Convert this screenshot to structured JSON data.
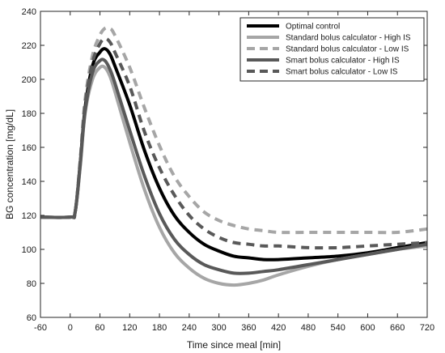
{
  "chart_data": {
    "type": "line",
    "title": "",
    "xlabel": "Time since meal [min]",
    "ylabel": "BG concentration [mg/dL]",
    "xlim": [
      -60,
      720
    ],
    "ylim": [
      60,
      240
    ],
    "xticks": [
      -60,
      0,
      60,
      120,
      180,
      240,
      300,
      360,
      420,
      480,
      540,
      600,
      660,
      720
    ],
    "yticks": [
      60,
      80,
      100,
      120,
      140,
      160,
      180,
      200,
      220,
      240
    ],
    "grid": false,
    "legend_position": "top-right",
    "series": [
      {
        "name": "Optimal control",
        "color": "#000000",
        "style": "solid",
        "x": [
          -60,
          0,
          10,
          20,
          30,
          45,
          60,
          70,
          80,
          90,
          120,
          150,
          180,
          210,
          240,
          270,
          300,
          330,
          360,
          390,
          420,
          480,
          540,
          600,
          660,
          720
        ],
        "y": [
          119,
          119,
          122,
          150,
          183,
          208,
          216,
          218,
          215,
          208,
          185,
          158,
          136,
          120,
          110,
          103,
          99,
          96,
          95,
          94,
          94,
          95,
          96,
          98,
          101,
          104
        ]
      },
      {
        "name": "Standard bolus calculator - High IS",
        "color": "#a6a6a6",
        "style": "solid",
        "x": [
          -60,
          0,
          10,
          20,
          30,
          45,
          60,
          70,
          80,
          90,
          120,
          150,
          180,
          210,
          240,
          270,
          300,
          330,
          360,
          390,
          420,
          480,
          540,
          600,
          660,
          720
        ],
        "y": [
          119,
          119,
          122,
          148,
          180,
          200,
          207,
          207,
          202,
          193,
          163,
          135,
          113,
          98,
          89,
          83,
          80,
          79,
          80,
          82,
          85,
          90,
          94,
          97,
          100,
          102
        ]
      },
      {
        "name": "Standard bolus calculator - Low IS",
        "color": "#a6a6a6",
        "style": "dashed",
        "x": [
          -60,
          0,
          10,
          20,
          30,
          45,
          60,
          70,
          80,
          90,
          120,
          150,
          180,
          210,
          240,
          270,
          300,
          330,
          360,
          390,
          420,
          480,
          540,
          600,
          660,
          720
        ],
        "y": [
          119,
          119,
          122,
          152,
          188,
          214,
          226,
          230,
          230,
          226,
          207,
          183,
          161,
          143,
          131,
          122,
          117,
          114,
          112,
          111,
          110,
          110,
          110,
          110,
          110,
          112
        ]
      },
      {
        "name": "Smart bolus calculator - High IS",
        "color": "#595959",
        "style": "solid",
        "x": [
          -60,
          0,
          10,
          20,
          30,
          45,
          60,
          70,
          80,
          90,
          120,
          150,
          180,
          210,
          240,
          270,
          300,
          330,
          360,
          390,
          420,
          480,
          540,
          600,
          660,
          720
        ],
        "y": [
          119,
          119,
          122,
          149,
          181,
          204,
          211,
          211,
          206,
          198,
          170,
          143,
          121,
          106,
          97,
          91,
          88,
          86,
          86,
          87,
          88,
          91,
          94,
          97,
          100,
          103
        ]
      },
      {
        "name": "Smart bolus calculator - Low IS",
        "color": "#595959",
        "style": "dashed",
        "x": [
          -60,
          0,
          10,
          20,
          30,
          45,
          60,
          70,
          80,
          90,
          120,
          150,
          180,
          210,
          240,
          270,
          300,
          330,
          360,
          390,
          420,
          480,
          540,
          600,
          660,
          720
        ],
        "y": [
          119,
          119,
          122,
          151,
          185,
          210,
          221,
          224,
          222,
          216,
          196,
          169,
          148,
          132,
          120,
          112,
          107,
          104,
          103,
          102,
          102,
          101,
          101,
          102,
          103,
          104
        ]
      }
    ]
  }
}
